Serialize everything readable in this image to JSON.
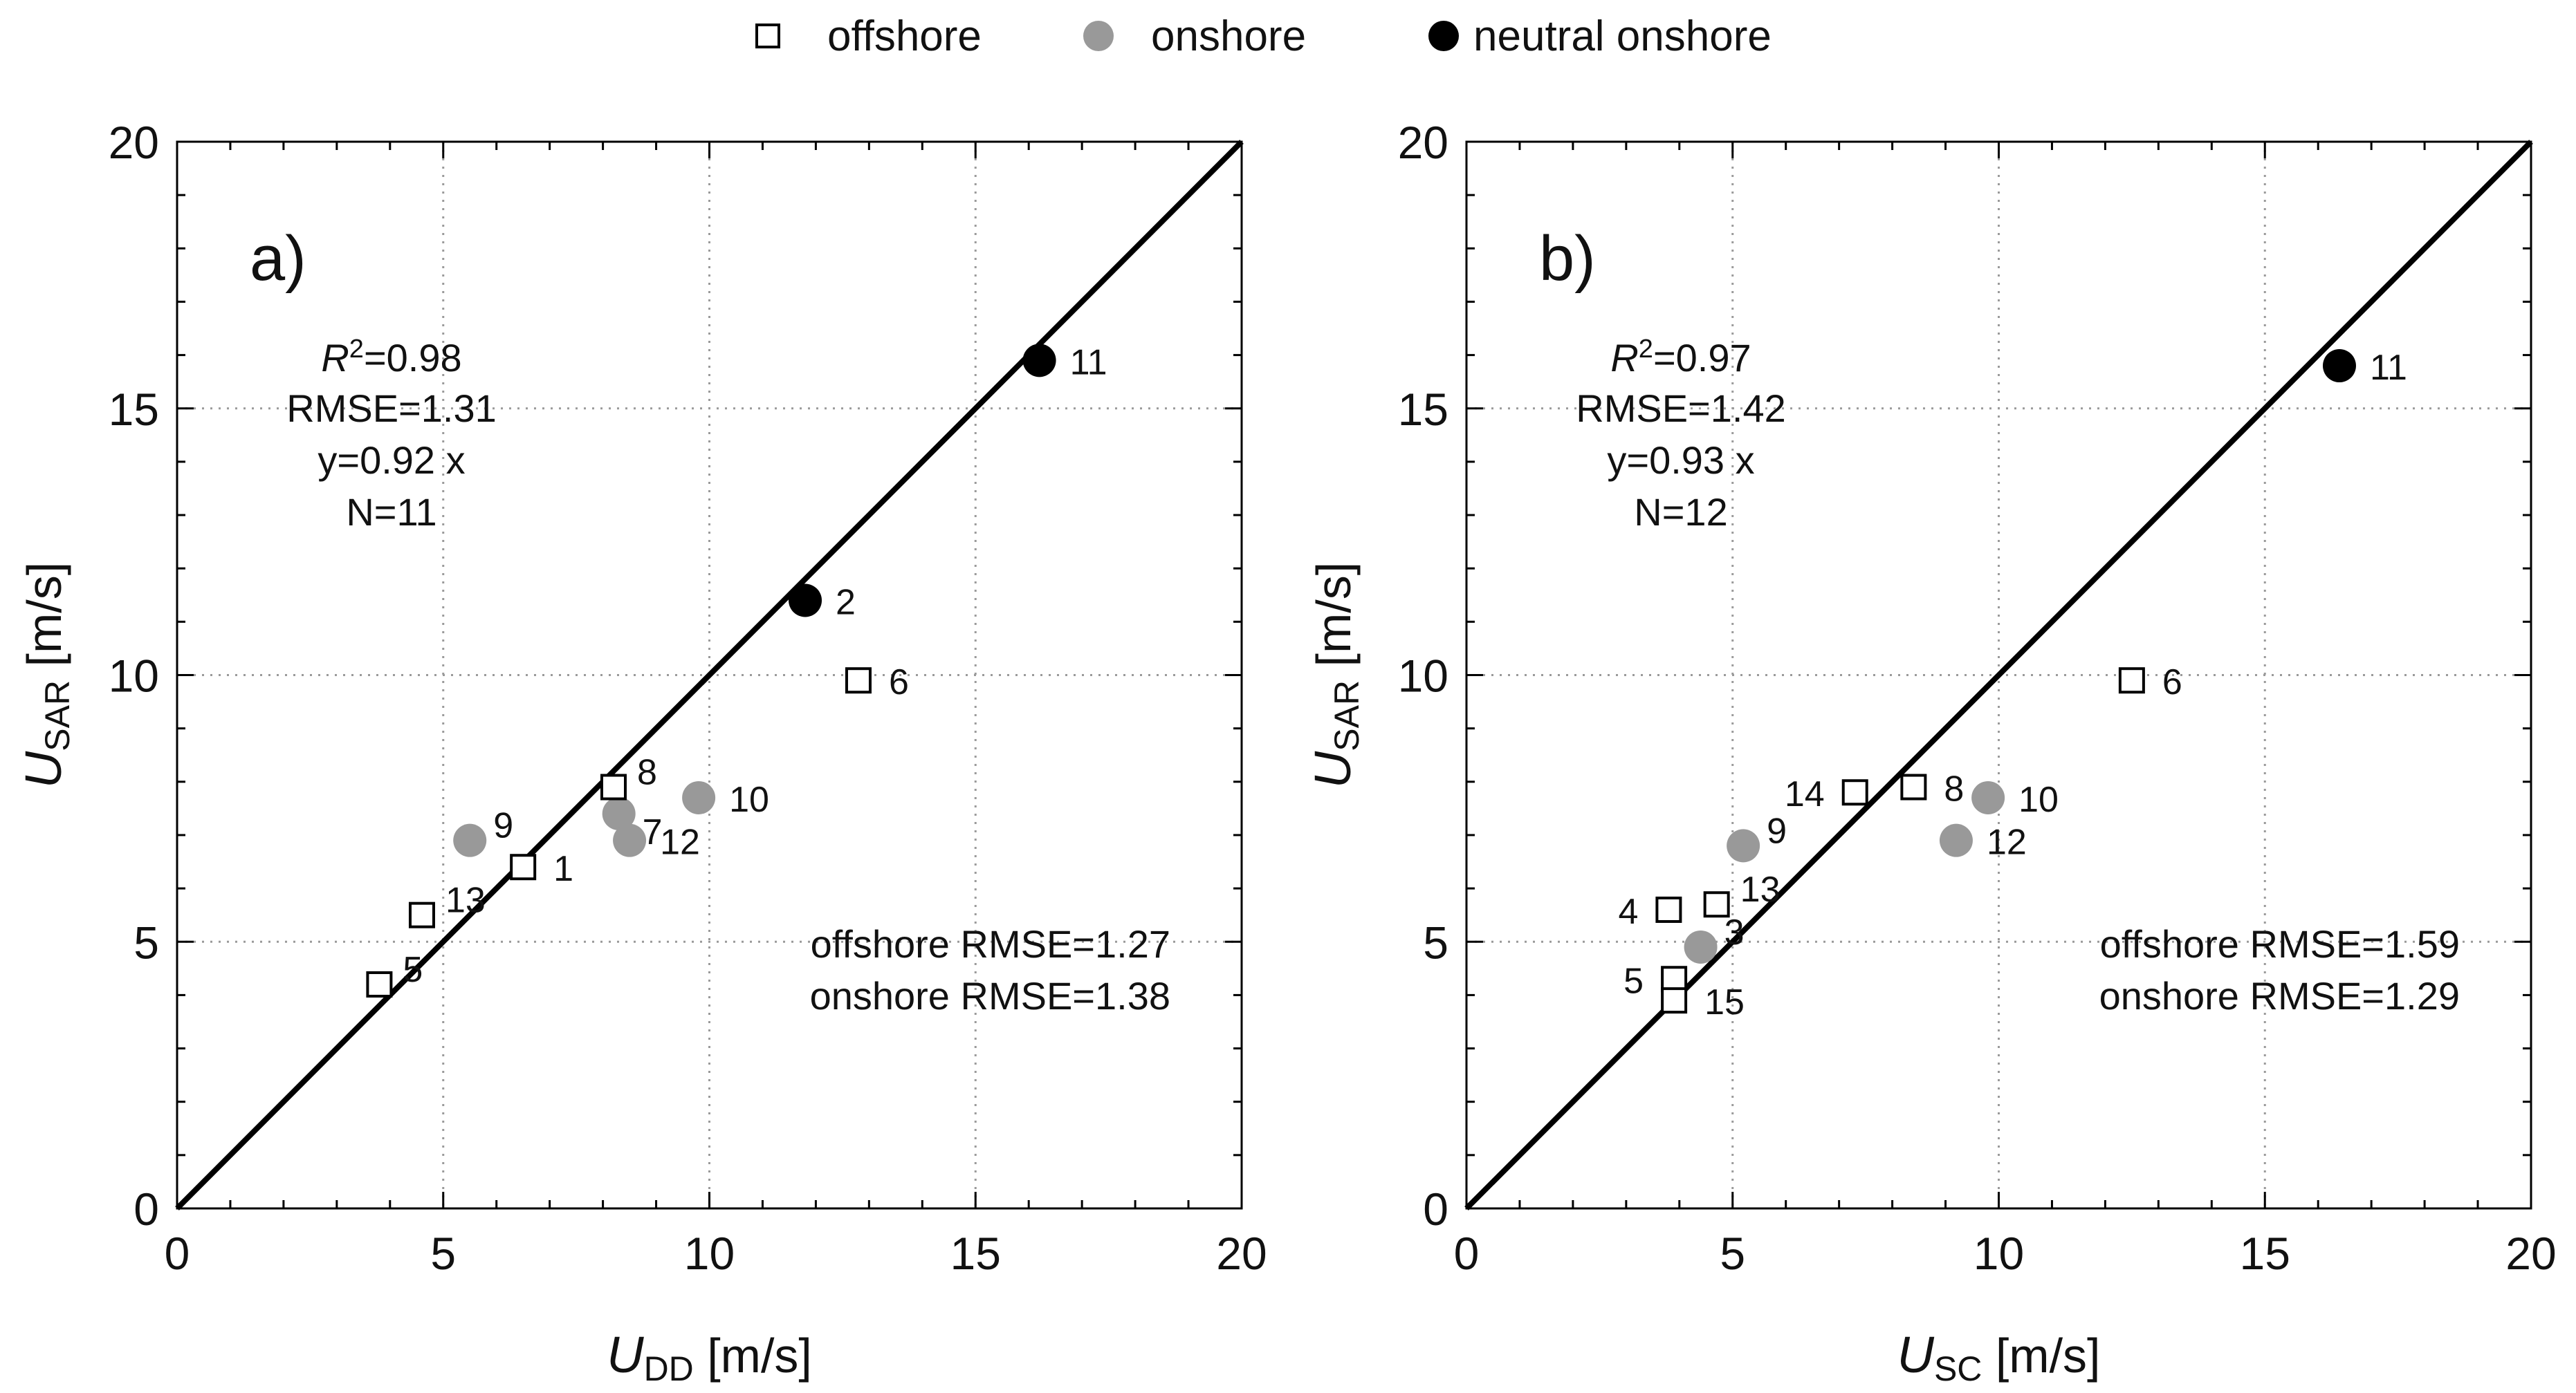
{
  "legend": {
    "items": [
      {
        "label": "offshore",
        "marker": "open-square",
        "color": "#ffffff"
      },
      {
        "label": "onshore",
        "marker": "filled-circle",
        "color": "#999999"
      },
      {
        "label": "neutral onshore",
        "marker": "filled-circle",
        "color": "#000000"
      }
    ]
  },
  "colors": {
    "offshore_fill": "#ffffff",
    "onshore": "#999999",
    "neutral_onshore": "#000000",
    "axis": "#000000",
    "grid": "#9a9a9a"
  },
  "chart_data": [
    {
      "type": "scatter",
      "panel_label": "a)",
      "xlabel": {
        "main": "U",
        "sub": "DD",
        "unit": " [m/s]"
      },
      "ylabel": {
        "main": "U",
        "sub": "SAR",
        "unit": " [m/s]"
      },
      "xlim": [
        0,
        20
      ],
      "ylim": [
        0,
        20
      ],
      "xticks": [
        0,
        5,
        10,
        15,
        20
      ],
      "yticks": [
        0,
        5,
        10,
        15,
        20
      ],
      "grid": true,
      "fit_line": {
        "slope": 1,
        "label": "1:1"
      },
      "stats": {
        "r2": "R²=0.98",
        "rmse": "RMSE=1.31",
        "fit": "y=0.92 x",
        "n": "N=11"
      },
      "class_rmse": [
        "offshore RMSE=1.27",
        "onshore RMSE=1.38"
      ],
      "points": [
        {
          "id": "1",
          "x": 6.5,
          "y": 6.4,
          "class": "offshore",
          "label_pos": "right"
        },
        {
          "id": "2",
          "x": 11.8,
          "y": 11.4,
          "class": "neutral onshore",
          "label_pos": "right"
        },
        {
          "id": "5",
          "x": 3.8,
          "y": 4.2,
          "class": "offshore",
          "label_pos": "right-up"
        },
        {
          "id": "6",
          "x": 12.8,
          "y": 9.9,
          "class": "offshore",
          "label_pos": "right"
        },
        {
          "id": "7",
          "x": 8.3,
          "y": 7.4,
          "class": "onshore",
          "label_pos": "right-down"
        },
        {
          "id": "8",
          "x": 8.2,
          "y": 7.9,
          "class": "offshore",
          "label_pos": "right-up"
        },
        {
          "id": "9",
          "x": 5.5,
          "y": 6.9,
          "class": "onshore",
          "label_pos": "right-up"
        },
        {
          "id": "10",
          "x": 9.8,
          "y": 7.7,
          "class": "onshore",
          "label_pos": "right"
        },
        {
          "id": "11",
          "x": 16.2,
          "y": 15.9,
          "class": "neutral onshore",
          "label_pos": "right"
        },
        {
          "id": "12",
          "x": 8.5,
          "y": 6.9,
          "class": "onshore",
          "label_pos": "right"
        },
        {
          "id": "13",
          "x": 4.6,
          "y": 5.5,
          "class": "offshore",
          "label_pos": "right-up"
        }
      ]
    },
    {
      "type": "scatter",
      "panel_label": "b)",
      "xlabel": {
        "main": "U",
        "sub": "SC",
        "unit": " [m/s]"
      },
      "ylabel": {
        "main": "U",
        "sub": "SAR",
        "unit": " [m/s]"
      },
      "xlim": [
        0,
        20
      ],
      "ylim": [
        0,
        20
      ],
      "xticks": [
        0,
        5,
        10,
        15,
        20
      ],
      "yticks": [
        0,
        5,
        10,
        15,
        20
      ],
      "grid": true,
      "fit_line": {
        "slope": 1,
        "label": "1:1"
      },
      "stats": {
        "r2": "R²=0.97",
        "rmse": "RMSE=1.42",
        "fit": "y=0.93 x",
        "n": "N=12"
      },
      "class_rmse": [
        "offshore RMSE=1.59",
        "onshore RMSE=1.29"
      ],
      "points": [
        {
          "id": "3",
          "x": 4.4,
          "y": 4.9,
          "class": "onshore",
          "label_pos": "right-up"
        },
        {
          "id": "4",
          "x": 3.8,
          "y": 5.6,
          "class": "offshore",
          "label_pos": "left"
        },
        {
          "id": "5",
          "x": 3.9,
          "y": 4.3,
          "class": "offshore",
          "label_pos": "left"
        },
        {
          "id": "6",
          "x": 12.5,
          "y": 9.9,
          "class": "offshore",
          "label_pos": "right"
        },
        {
          "id": "8",
          "x": 8.4,
          "y": 7.9,
          "class": "offshore",
          "label_pos": "right"
        },
        {
          "id": "9",
          "x": 5.2,
          "y": 6.8,
          "class": "onshore",
          "label_pos": "right-up"
        },
        {
          "id": "10",
          "x": 9.8,
          "y": 7.7,
          "class": "onshore",
          "label_pos": "right"
        },
        {
          "id": "11",
          "x": 16.4,
          "y": 15.8,
          "class": "neutral onshore",
          "label_pos": "right"
        },
        {
          "id": "12",
          "x": 9.2,
          "y": 6.9,
          "class": "onshore",
          "label_pos": "right"
        },
        {
          "id": "13",
          "x": 4.7,
          "y": 5.7,
          "class": "offshore",
          "label_pos": "right-up"
        },
        {
          "id": "14",
          "x": 7.3,
          "y": 7.8,
          "class": "offshore",
          "label_pos": "left"
        },
        {
          "id": "15",
          "x": 3.9,
          "y": 3.9,
          "class": "offshore",
          "label_pos": "right"
        }
      ]
    }
  ]
}
